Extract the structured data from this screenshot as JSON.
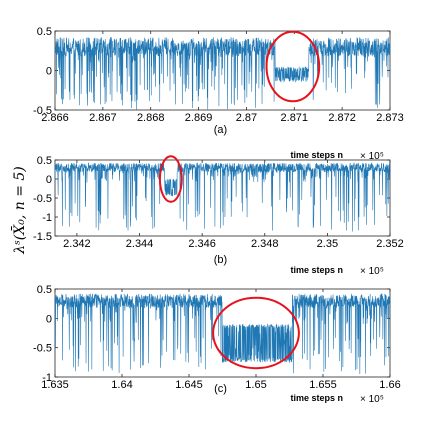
{
  "ylabel": "λˢ(X̄₀, n = 5)",
  "chart_data": [
    {
      "type": "line",
      "subplot_label": "(a)",
      "xlabel": "time steps n",
      "x_multiplier": "× 10⁵",
      "xlim": [
        2.866,
        2.873
      ],
      "ylim": [
        -0.5,
        0.5
      ],
      "x_ticks": [
        "2.866",
        "2.867",
        "2.868",
        "2.869",
        "2.87",
        "2.871",
        "2.872",
        "2.873"
      ],
      "y_ticks": [
        "0.5",
        "0",
        "-0.5"
      ],
      "y_tick_values": [
        0.5,
        0,
        -0.5
      ],
      "series": [
        {
          "color": "#1f77b4",
          "baseline": 0.3,
          "noise": 0.12,
          "spike_min": -0.5,
          "laminar_regions": [
            [
              2.8706,
              2.8713
            ]
          ],
          "laminar_band": [
            -0.15,
            0.05
          ]
        }
      ],
      "annotation": {
        "shape": "ellipse",
        "color": "#e8121b",
        "center": [
          2.87097,
          0.05
        ],
        "radii": [
          0.00055,
          0.44
        ]
      }
    },
    {
      "type": "line",
      "subplot_label": "(b)",
      "xlabel": "time steps n",
      "x_multiplier": "× 10⁵",
      "xlim": [
        2.3413,
        2.352
      ],
      "ylim": [
        -1.5,
        0.5
      ],
      "x_ticks": [
        "2.342",
        "2.344",
        "2.346",
        "2.348",
        "2.35",
        "2.352"
      ],
      "x_tick_values": [
        2.342,
        2.344,
        2.346,
        2.348,
        2.35,
        2.352
      ],
      "y_ticks": [
        "0.5",
        "0",
        "-0.5",
        "-1",
        "-1.5"
      ],
      "y_tick_values": [
        0.5,
        0,
        -0.5,
        -1,
        -1.5
      ],
      "series": [
        {
          "color": "#1f77b4",
          "baseline": 0.3,
          "noise": 0.12,
          "spike_min": -1.4,
          "laminar_regions": [
            [
              2.3448,
              2.3452
            ]
          ],
          "laminar_band": [
            -0.45,
            0.0
          ]
        }
      ],
      "annotation": {
        "shape": "ellipse",
        "color": "#e8121b",
        "center": [
          2.345,
          0.0
        ],
        "radii": [
          0.00035,
          0.6
        ]
      }
    },
    {
      "type": "line",
      "subplot_label": "(c)",
      "xlabel": "time steps n",
      "x_multiplier": "× 10⁵",
      "xlim": [
        1.635,
        1.66
      ],
      "ylim": [
        -1,
        0.5
      ],
      "x_ticks": [
        "1.635",
        "1.64",
        "1.645",
        "1.65",
        "1.655",
        "1.66"
      ],
      "x_tick_values": [
        1.635,
        1.64,
        1.645,
        1.65,
        1.655,
        1.66
      ],
      "y_ticks": [
        "0.5",
        "0",
        "-0.5",
        "-1"
      ],
      "y_tick_values": [
        0.5,
        0,
        -0.5,
        -1
      ],
      "series": [
        {
          "color": "#1f77b4",
          "baseline": 0.3,
          "noise": 0.12,
          "spike_min": -0.95,
          "laminar_regions": [
            [
              1.6475,
              1.6527
            ]
          ],
          "laminar_band": [
            -0.75,
            -0.1
          ]
        }
      ],
      "annotation": {
        "shape": "ellipse",
        "color": "#e8121b",
        "center": [
          1.65,
          -0.25
        ],
        "radii": [
          0.0032,
          0.6
        ]
      }
    }
  ]
}
